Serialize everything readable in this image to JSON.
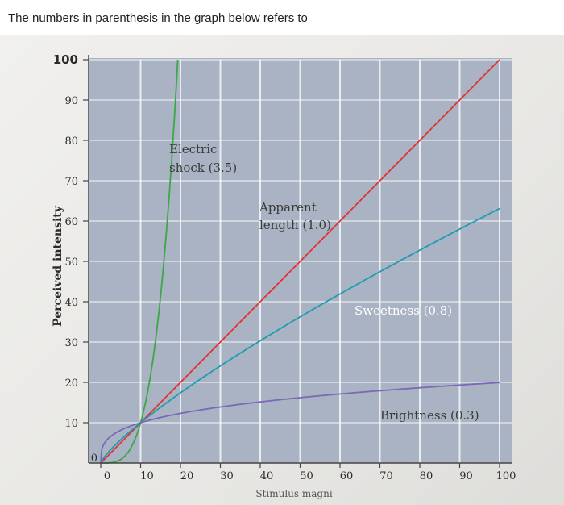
{
  "question": {
    "text": "The numbers in parenthesis in the graph below refers to"
  },
  "colors": {
    "plot_bg": "#aab3c3",
    "shock": "#39a845",
    "length": "#e03333",
    "sweetness": "#1e9cb0",
    "brightness": "#7a68b8"
  },
  "chart_data": {
    "type": "line",
    "title": "",
    "xlabel": "Stimulus magni",
    "ylabel": "Perceived intensity",
    "xlim": [
      0,
      100
    ],
    "ylim": [
      0,
      100
    ],
    "x_ticks": [
      "0",
      "10",
      "20",
      "30",
      "40",
      "50",
      "60",
      "70",
      "80",
      "90",
      "100"
    ],
    "y_ticks": [
      "0",
      "10",
      "20",
      "30",
      "40",
      "50",
      "60",
      "70",
      "80",
      "90",
      "100"
    ],
    "grid": true,
    "series": [
      {
        "name": "Electric",
        "name_line2": "shock (3.5)",
        "exponent": 3.5,
        "color_key": "shock"
      },
      {
        "name": "Apparent",
        "name_line2": "length (1.0)",
        "exponent": 1.0,
        "color_key": "length"
      },
      {
        "name": "Sweetness (0.8)",
        "exponent": 0.8,
        "color_key": "sweetness"
      },
      {
        "name": "Brightness (0.3)",
        "exponent": 0.3,
        "color_key": "brightness"
      }
    ]
  }
}
